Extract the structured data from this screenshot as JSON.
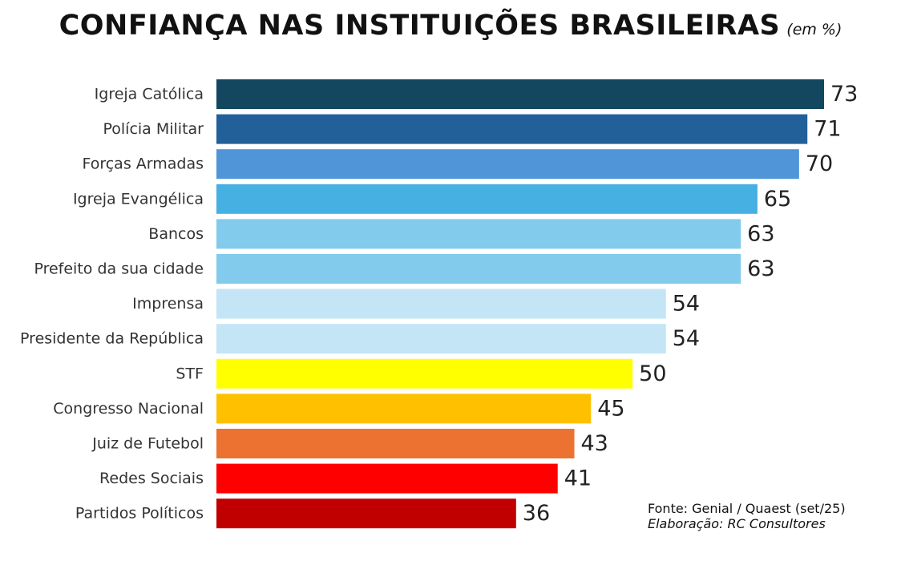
{
  "chart_data": {
    "type": "bar",
    "orientation": "horizontal",
    "title": "CONFIANÇA NAS INSTITUIÇÕES BRASILEIRAS",
    "title_unit": "(em %)",
    "categories": [
      "Igreja Católica",
      "Polícia Militar",
      "Forças Armadas",
      "Igreja Evangélica",
      "Bancos",
      "Prefeito da sua cidade",
      "Imprensa",
      "Presidente da República",
      "STF",
      "Congresso Nacional",
      "Juiz de Futebol",
      "Redes Sociais",
      "Partidos Políticos"
    ],
    "values": [
      73,
      71,
      70,
      65,
      63,
      63,
      54,
      54,
      50,
      45,
      43,
      41,
      36
    ],
    "colors": [
      "#13475f",
      "#22609a",
      "#4f95d8",
      "#46b0e2",
      "#82cbec",
      "#82cbec",
      "#c3e5f6",
      "#c3e5f6",
      "#ffff00",
      "#ffc000",
      "#ec7232",
      "#ff0000",
      "#c00000"
    ],
    "xlim": [
      0,
      73
    ],
    "grid": false,
    "legend": "none",
    "data_labels": true
  },
  "footer": {
    "source": "Fonte: Genial / Quaest (set/25)",
    "credit": "Elaboração: RC Consultores"
  }
}
